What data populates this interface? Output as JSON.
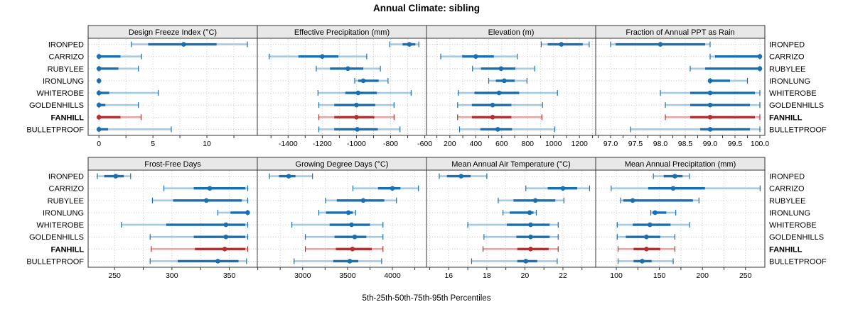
{
  "title": "Annual Climate: sibling",
  "xlabel": "5th-25th-50th-75th-95th Percentiles",
  "chart_data": {
    "type": "dotplot",
    "note": "trellis of horizontal percentile plots; dot = median, thick band = 25th-75th, thin band with end caps = 5th-95th",
    "categories": [
      "IRONPED",
      "CARRIZO",
      "RUBYLEE",
      "IRONLUNG",
      "WHITEROBE",
      "GOLDENHILLS",
      "FANHILL",
      "BULLETPROOF"
    ],
    "highlight_category": "FANHILL",
    "percentile_labels": [
      "5th",
      "25th",
      "50th",
      "75th",
      "95th"
    ],
    "colors": {
      "main": "#1A6FAE",
      "main_light": "#A6CAE3",
      "highlight": "#B23030",
      "highlight_light": "#E2A9A9",
      "strip_bg": "#E8E8E8",
      "border": "#333333",
      "grid": "#C9C9C9",
      "text": "#000000"
    },
    "panels": [
      {
        "key": "design-freeze-index",
        "title": "Design Freeze Index (°C)",
        "row": 0,
        "col": 0,
        "xlim": [
          -1.0,
          14.67
        ],
        "ticks": [
          0,
          5,
          10
        ],
        "tick_labels": [
          "0",
          "5",
          "10"
        ],
        "grid_step": 2.5,
        "tick_step": 2.5,
        "series": [
          [
            3.0,
            4.55,
            7.85,
            10.9,
            13.75
          ],
          [
            0,
            0,
            0,
            2.0,
            3.95
          ],
          [
            0,
            0,
            0,
            1.8,
            3.65
          ],
          [
            0,
            0,
            0,
            0,
            0
          ],
          [
            0,
            0,
            0,
            0.95,
            5.5
          ],
          [
            0,
            0,
            0,
            0.6,
            3.65
          ],
          [
            0,
            0,
            0,
            2.0,
            3.9
          ],
          [
            0,
            0,
            0,
            0.85,
            6.7
          ]
        ]
      },
      {
        "key": "effective-precipitation",
        "title": "Effective Precipitation (mm)",
        "row": 0,
        "col": 1,
        "xlim": [
          -1580,
          -590
        ],
        "ticks": [
          -1400,
          -1200,
          -1000,
          -800,
          -600
        ],
        "tick_labels": [
          "-1400",
          "-1200",
          "-1000",
          "-800",
          "-600"
        ],
        "grid_step": 100,
        "tick_step": 100,
        "series": [
          [
            -805,
            -730,
            -690,
            -655,
            -635
          ],
          [
            -1510,
            -1340,
            -1200,
            -1105,
            -940
          ],
          [
            -1235,
            -1155,
            -1050,
            -960,
            -860
          ],
          [
            -1010,
            -990,
            -960,
            -870,
            -815
          ],
          [
            -1225,
            -1065,
            -990,
            -880,
            -680
          ],
          [
            -1220,
            -1130,
            -1000,
            -890,
            -780
          ],
          [
            -1220,
            -1130,
            -1000,
            -895,
            -780
          ],
          [
            -1220,
            -1130,
            -995,
            -875,
            -745
          ]
        ]
      },
      {
        "key": "elevation",
        "title": "Elevation (m)",
        "row": 0,
        "col": 2,
        "xlim": [
          20,
          1325
        ],
        "ticks": [
          200,
          400,
          600,
          800,
          1000,
          1200
        ],
        "tick_labels": [
          "200",
          "400",
          "600",
          "800",
          "1000",
          "1200"
        ],
        "grid_step": 100,
        "tick_step": 100,
        "series": [
          [
            905,
            955,
            1060,
            1225,
            1275
          ],
          [
            130,
            295,
            400,
            540,
            720
          ],
          [
            375,
            440,
            595,
            705,
            855
          ],
          [
            500,
            555,
            620,
            700,
            795
          ],
          [
            265,
            390,
            580,
            735,
            1030
          ],
          [
            260,
            370,
            530,
            675,
            915
          ],
          [
            260,
            370,
            530,
            675,
            910
          ],
          [
            275,
            435,
            570,
            680,
            1010
          ]
        ]
      },
      {
        "key": "fraction-ppt-as-rain",
        "title": "Fraction of Annual PPT as Rain",
        "row": 0,
        "col": 3,
        "xlim": [
          96.7,
          100.1
        ],
        "ticks": [
          97.0,
          97.5,
          98.0,
          98.5,
          99.0,
          99.5,
          100.0
        ],
        "tick_labels": [
          "97.0",
          "97.5",
          "98.0",
          "98.5",
          "99.0",
          "99.5",
          "100.0"
        ],
        "grid_step": 0.5,
        "tick_step": 0.25,
        "series": [
          [
            97.0,
            97.1,
            98.0,
            98.9,
            99.0
          ],
          [
            99.0,
            99.1,
            100.0,
            100.0,
            100.0
          ],
          [
            98.6,
            98.9,
            100.0,
            100.0,
            100.0
          ],
          [
            99.0,
            99.0,
            99.0,
            99.4,
            99.75
          ],
          [
            98.0,
            98.6,
            99.0,
            99.9,
            100.0
          ],
          [
            98.1,
            98.6,
            99.0,
            99.8,
            100.0
          ],
          [
            98.1,
            98.6,
            99.0,
            99.9,
            100.0
          ],
          [
            97.4,
            98.8,
            99.0,
            99.8,
            100.0
          ]
        ]
      },
      {
        "key": "frost-free-days",
        "title": "Frost-Free Days",
        "row": 1,
        "col": 0,
        "xlim": [
          227,
          374.4
        ],
        "ticks": [
          250,
          300,
          350
        ],
        "tick_labels": [
          "250",
          "300",
          "350"
        ],
        "grid_step": 25,
        "tick_step": 25,
        "series": [
          [
            235,
            241,
            251,
            258,
            264
          ],
          [
            293,
            319,
            333,
            364,
            366
          ],
          [
            283,
            301,
            330,
            361,
            366
          ],
          [
            340,
            351,
            366,
            366,
            366
          ],
          [
            256,
            295,
            347,
            364,
            366
          ],
          [
            281,
            319,
            347,
            364,
            366
          ],
          [
            282,
            320,
            346,
            364,
            366
          ],
          [
            281,
            305,
            340,
            358,
            365
          ]
        ]
      },
      {
        "key": "growing-degree-days",
        "title": "Growing Degree Days (°C)",
        "row": 1,
        "col": 1,
        "xlim": [
          2495,
          4380
        ],
        "ticks": [
          3000,
          3500,
          4000
        ],
        "tick_labels": [
          "3000",
          "3500",
          "4000"
        ],
        "grid_step": 250,
        "tick_step": 250,
        "series": [
          [
            2630,
            2735,
            2845,
            2920,
            3110
          ],
          [
            3560,
            3840,
            4000,
            4090,
            4290
          ],
          [
            3255,
            3380,
            3675,
            3910,
            4045
          ],
          [
            3180,
            3260,
            3510,
            3560,
            3590
          ],
          [
            2880,
            3300,
            3545,
            3750,
            3895
          ],
          [
            3030,
            3355,
            3580,
            3710,
            3895
          ],
          [
            3030,
            3370,
            3555,
            3770,
            3895
          ],
          [
            2905,
            3340,
            3525,
            3620,
            3880
          ]
        ]
      },
      {
        "key": "mean-annual-air-temperature",
        "title": "Mean Annual Air Temperature (°C)",
        "row": 1,
        "col": 2,
        "xlim": [
          14.83,
          23.72
        ],
        "ticks": [
          16,
          18,
          20,
          22
        ],
        "tick_labels": [
          "16",
          "18",
          "20",
          "22"
        ],
        "grid_step": 1,
        "tick_step": 1,
        "series": [
          [
            15.5,
            15.9,
            16.65,
            17.15,
            18.0
          ],
          [
            20.05,
            21.2,
            22.0,
            22.75,
            23.4
          ],
          [
            18.6,
            19.4,
            20.55,
            21.6,
            22.05
          ],
          [
            18.85,
            19.2,
            20.25,
            20.45,
            20.6
          ],
          [
            17.0,
            19.05,
            20.3,
            21.3,
            21.75
          ],
          [
            17.85,
            19.55,
            20.3,
            21.3,
            21.75
          ],
          [
            17.8,
            19.6,
            20.3,
            21.25,
            21.75
          ],
          [
            17.2,
            19.6,
            20.05,
            20.65,
            21.7
          ]
        ]
      },
      {
        "key": "mean-annual-precipitation",
        "title": "Mean Annual Precipitation (mm)",
        "row": 1,
        "col": 3,
        "xlim": [
          76,
          272.5
        ],
        "ticks": [
          100,
          150,
          200,
          250
        ],
        "tick_labels": [
          "100",
          "150",
          "200",
          "250"
        ],
        "grid_step": 25,
        "tick_step": 25,
        "series": [
          [
            143,
            155,
            168,
            177,
            185
          ],
          [
            94,
            137,
            166,
            203,
            267
          ],
          [
            105,
            108,
            119,
            189,
            196
          ],
          [
            140,
            142,
            145,
            158,
            169
          ],
          [
            101,
            119,
            139,
            163,
            185
          ],
          [
            101,
            111,
            135,
            151,
            168
          ],
          [
            102,
            120,
            135,
            151,
            168
          ],
          [
            102,
            120,
            130,
            141,
            166
          ]
        ]
      }
    ]
  }
}
